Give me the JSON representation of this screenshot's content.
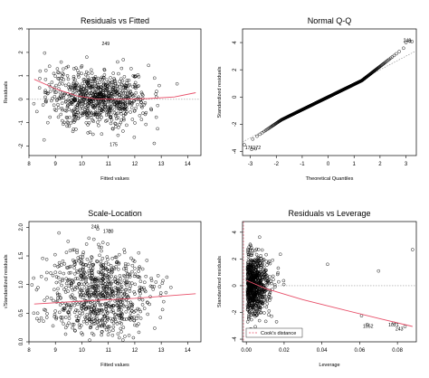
{
  "chart_data": [
    {
      "type": "scatter",
      "title": "Residuals vs Fitted",
      "xlabel": "Fitted values",
      "ylabel": "Residuals",
      "xlim": [
        8,
        14.5
      ],
      "ylim": [
        -2.4,
        3.0
      ],
      "xticks": [
        "8",
        "9",
        "10",
        "11",
        "12",
        "13",
        "14"
      ],
      "yticks": [
        "-2",
        "-1",
        "0",
        "1",
        "2",
        "3"
      ],
      "reference_line": 0,
      "smoother": {
        "x": [
          8.2,
          9.0,
          9.8,
          10.5,
          11.5,
          12.5,
          13.5,
          14.3
        ],
        "y": [
          0.85,
          0.45,
          0.15,
          0.02,
          0.0,
          0.03,
          0.1,
          0.28
        ]
      },
      "annotations": [
        {
          "label": "249",
          "x": 10.9,
          "y": 2.3
        },
        {
          "label": "175",
          "x": 11.2,
          "y": -2.0
        }
      ],
      "cloud": {
        "n": 820,
        "x_mean": 10.6,
        "x_sd": 0.95,
        "y_sd": 0.72
      },
      "colors": {
        "points": "#000000",
        "smoother": "#e8506a",
        "reference": "#999999"
      }
    },
    {
      "type": "scatter",
      "title": "Normal Q-Q",
      "xlabel": "Theoretical Quantiles",
      "ylabel": "Standardized residuals",
      "xlim": [
        -3.3,
        3.4
      ],
      "ylim": [
        -4.3,
        5.0
      ],
      "xticks": [
        "-3",
        "-2",
        "-1",
        "0",
        "1",
        "2",
        "3"
      ],
      "yticks": [
        "-4",
        "-2",
        "0",
        "2",
        "4"
      ],
      "reference_line": {
        "x": [
          -3.3,
          3.4
        ],
        "y": [
          -3.3,
          3.4
        ]
      },
      "annotations": [
        {
          "label": "249",
          "x": 3.05,
          "y": 4.05
        },
        {
          "label": "176172",
          "x": -2.9,
          "y": -3.85
        }
      ],
      "points": {
        "n": 820,
        "curve": "heavy-tailed"
      },
      "colors": {
        "points": "#000000",
        "reference": "#888888"
      }
    },
    {
      "type": "scatter",
      "title": "Scale-Location",
      "xlabel": "Fitted values",
      "ylabel": "√Standardized residuals",
      "xlim": [
        8,
        14.5
      ],
      "ylim": [
        0,
        2.1
      ],
      "xticks": [
        "8",
        "9",
        "10",
        "11",
        "12",
        "13",
        "14"
      ],
      "yticks": [
        "0.0",
        "0.5",
        "1.0",
        "1.5",
        "2.0"
      ],
      "smoother": {
        "x": [
          8.2,
          10.0,
          12.0,
          14.3
        ],
        "y": [
          0.66,
          0.71,
          0.76,
          0.84
        ]
      },
      "annotations": [
        {
          "label": "249",
          "x": 10.5,
          "y": 1.98
        },
        {
          "label": "1720",
          "x": 11.0,
          "y": 1.9
        }
      ],
      "cloud": {
        "n": 820,
        "x_mean": 10.6,
        "x_sd": 0.95
      },
      "colors": {
        "points": "#000000",
        "smoother": "#e8506a"
      }
    },
    {
      "type": "scatter",
      "title": "Residuals vs Leverage",
      "xlabel": "Leverage",
      "ylabel": "Standardized residuals",
      "xlim": [
        -0.002,
        0.09
      ],
      "ylim": [
        -4.2,
        4.8
      ],
      "xticks": [
        "0.00",
        "0.02",
        "0.04",
        "0.06",
        "0.08"
      ],
      "yticks": [
        "-4",
        "-2",
        "0",
        "2",
        "4"
      ],
      "reference_line": 0,
      "smoother": {
        "x": [
          0.0,
          0.01,
          0.03,
          0.05,
          0.07,
          0.088
        ],
        "y": [
          0.4,
          -0.2,
          -1.05,
          -1.75,
          -2.45,
          -3.05
        ]
      },
      "annotations": [
        {
          "label": "1052",
          "x": 0.0645,
          "y": -3.15
        },
        {
          "label": "1021",
          "x": 0.078,
          "y": -3.05
        },
        {
          "label": "243",
          "x": 0.081,
          "y": -3.35
        }
      ],
      "outliers": [
        {
          "x": 0.043,
          "y": 1.6
        },
        {
          "x": 0.07,
          "y": 1.1
        },
        {
          "x": 0.061,
          "y": -2.25
        },
        {
          "x": 0.088,
          "y": 2.7
        },
        {
          "x": 0.064,
          "y": -2.9
        },
        {
          "x": 0.078,
          "y": -2.8
        },
        {
          "x": 0.084,
          "y": -3.05
        },
        {
          "x": 0.018,
          "y": 2.35
        },
        {
          "x": 0.016,
          "y": -2.7
        }
      ],
      "legend": {
        "label": "Cook's distance",
        "position": "bottom-left"
      },
      "cloud": {
        "n": 780,
        "leverage_max": 0.012
      },
      "colors": {
        "points": "#000000",
        "smoother": "#e8506a",
        "cooks": "#e8506a",
        "reference": "#999999"
      }
    }
  ]
}
